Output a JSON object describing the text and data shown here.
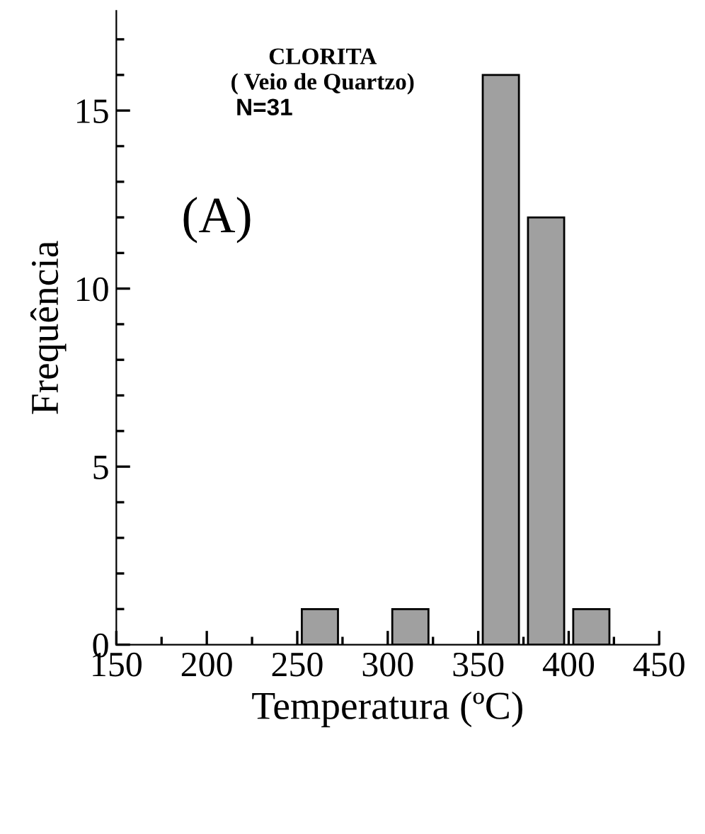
{
  "chart_data": {
    "type": "histogram",
    "xlabel": "Temperatura (ºC)",
    "ylabel": "Frequência",
    "bins": [
      250,
      275,
      300,
      325,
      350,
      375,
      400,
      425
    ],
    "values": [
      1,
      0,
      1,
      0,
      16,
      12,
      1
    ],
    "color": "#a0a0a0",
    "xlim": [
      150,
      450
    ],
    "xticks": [
      150,
      200,
      250,
      300,
      350,
      400,
      450
    ],
    "ylim": [
      0,
      17.8
    ],
    "yticks": [
      0,
      5,
      10,
      15
    ],
    "grid": false,
    "annotations": [
      "CLORITA",
      "( Veio de Quartzo)",
      "N=31",
      "(A)"
    ]
  }
}
